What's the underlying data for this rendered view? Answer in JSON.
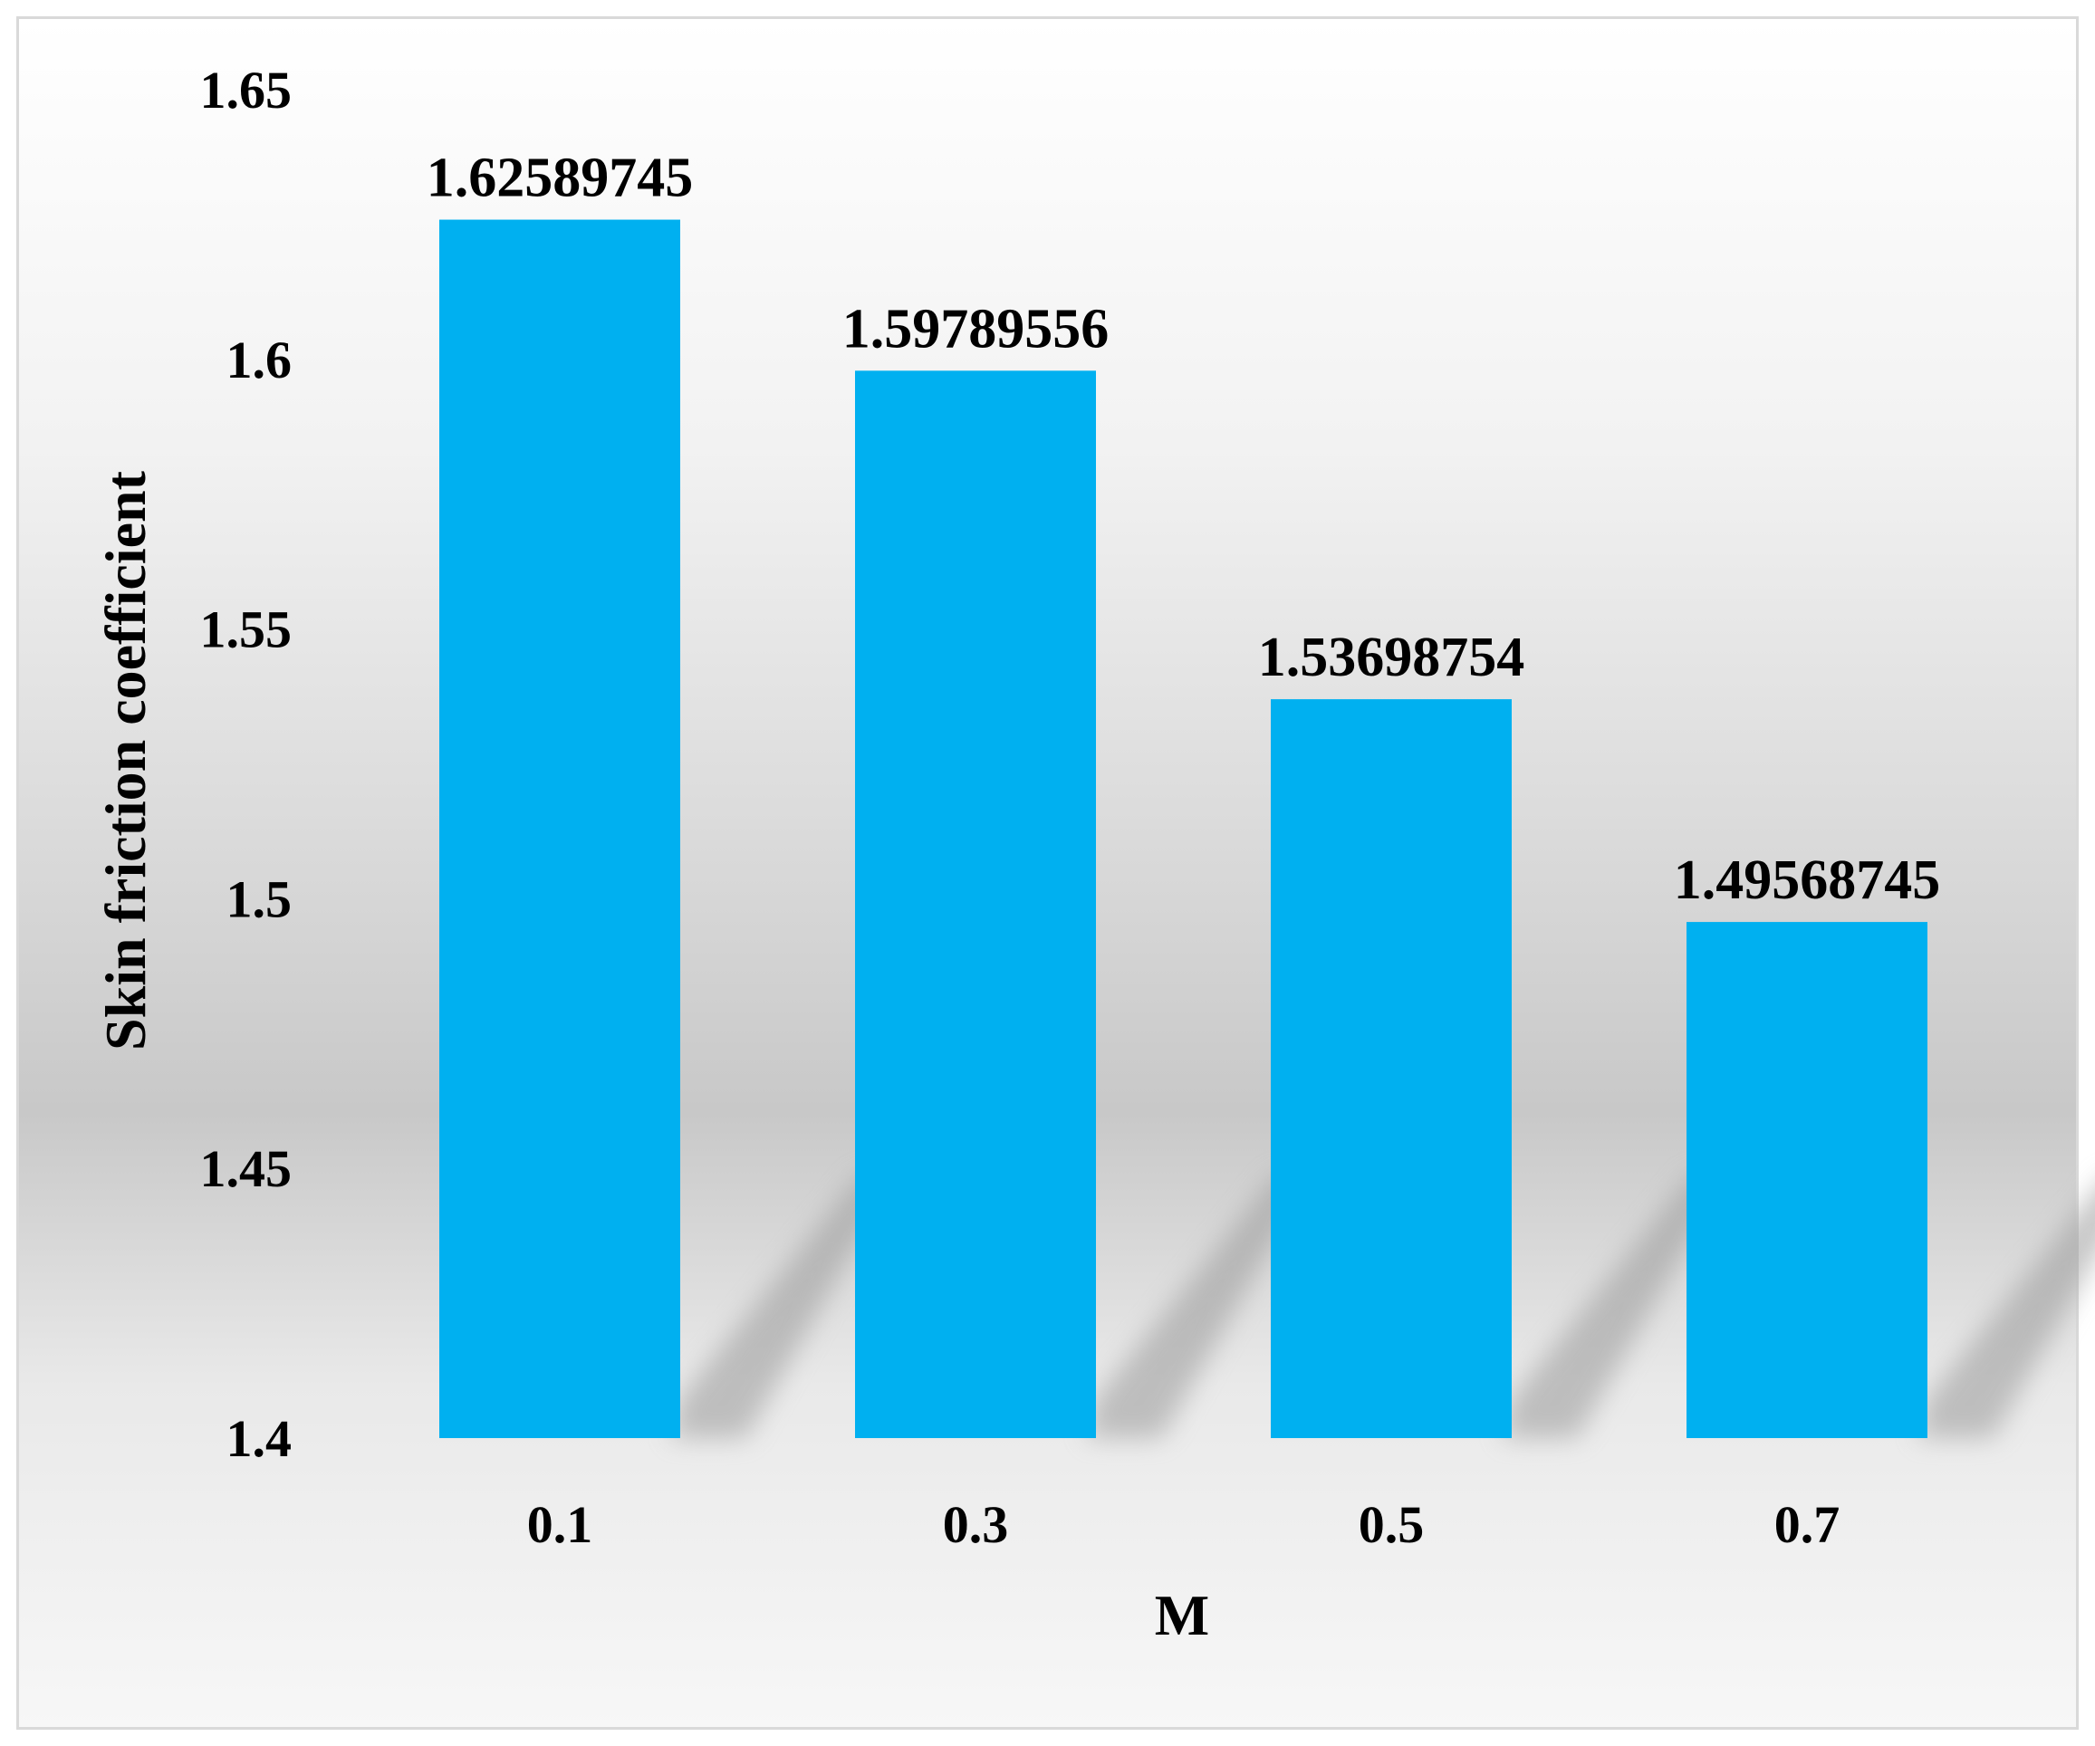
{
  "chart_data": {
    "type": "bar",
    "title": "",
    "xlabel": "M",
    "ylabel": "Skin friction coefficient",
    "categories": [
      "0.1",
      "0.3",
      "0.5",
      "0.7"
    ],
    "values": [
      1.62589745,
      1.59789556,
      1.53698754,
      1.49568745
    ],
    "data_labels": [
      "1.62589745",
      "1.59789556",
      "1.53698754",
      "1.49568745"
    ],
    "ylim": [
      1.4,
      1.65
    ],
    "yticks": [
      1.4,
      1.45,
      1.5,
      1.55,
      1.6,
      1.65
    ],
    "ytick_labels": [
      "1.4",
      "1.45",
      "1.5",
      "1.55",
      "1.6",
      "1.65"
    ],
    "grid": false,
    "legend": "none",
    "bar_color": "#00b0f0"
  }
}
